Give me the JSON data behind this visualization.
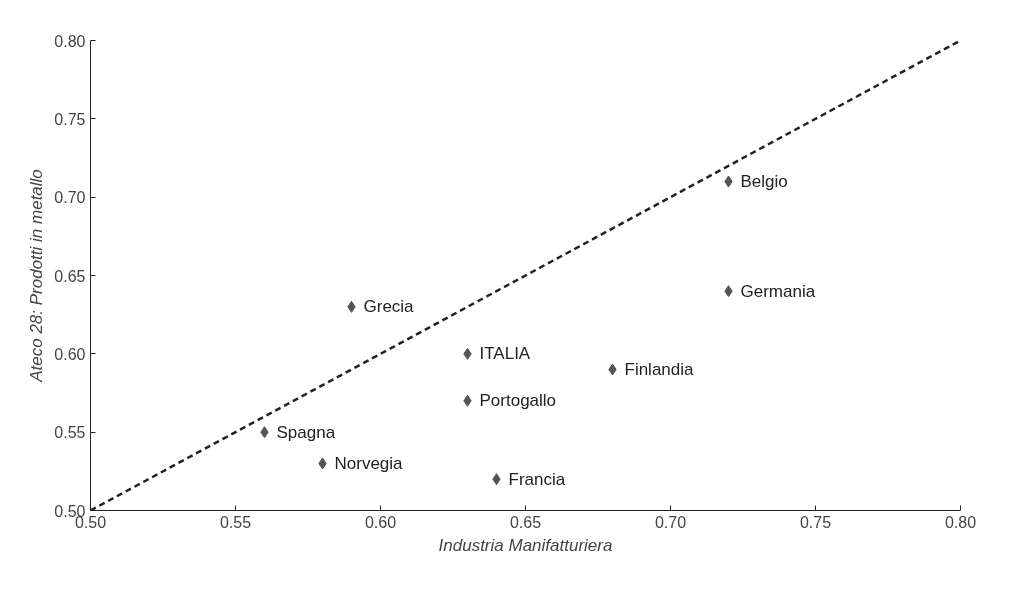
{
  "chart_data": {
    "type": "scatter",
    "xlabel": "Industria Manifatturiera",
    "ylabel": "Ateco 28: Prodotti in metallo",
    "xlim": [
      0.5,
      0.8
    ],
    "ylim": [
      0.5,
      0.8
    ],
    "xticks": [
      {
        "value": 0.5,
        "label": "0.50"
      },
      {
        "value": 0.55,
        "label": "0.55"
      },
      {
        "value": 0.6,
        "label": "0.60"
      },
      {
        "value": 0.65,
        "label": "0.65"
      },
      {
        "value": 0.7,
        "label": "0.70"
      },
      {
        "value": 0.75,
        "label": "0.75"
      },
      {
        "value": 0.8,
        "label": "0.80"
      }
    ],
    "yticks": [
      {
        "value": 0.5,
        "label": "0.50"
      },
      {
        "value": 0.55,
        "label": "0.55"
      },
      {
        "value": 0.6,
        "label": "0.60"
      },
      {
        "value": 0.65,
        "label": "0.65"
      },
      {
        "value": 0.7,
        "label": "0.70"
      },
      {
        "value": 0.75,
        "label": "0.75"
      },
      {
        "value": 0.8,
        "label": "0.80"
      }
    ],
    "grid": false,
    "series": [
      {
        "marker": "diamond",
        "color": "#555555",
        "x": [
          0.72,
          0.72,
          0.59,
          0.63,
          0.68,
          0.63,
          0.56,
          0.58,
          0.64
        ],
        "values": [
          0.71,
          0.64,
          0.63,
          0.6,
          0.59,
          0.57,
          0.55,
          0.53,
          0.52
        ]
      },
      {
        "type": "line",
        "marker": "none",
        "color": "#222222",
        "line_style": "dashed",
        "x": [
          0.5,
          0.8
        ],
        "values": [
          0.5,
          0.8
        ]
      }
    ],
    "annotations": [
      {
        "text": "Belgio",
        "x": 0.72,
        "y": 0.71
      },
      {
        "text": "Germania",
        "x": 0.72,
        "y": 0.64
      },
      {
        "text": "Grecia",
        "x": 0.59,
        "y": 0.63
      },
      {
        "text": "ITALIA",
        "x": 0.63,
        "y": 0.6
      },
      {
        "text": "Finlandia",
        "x": 0.68,
        "y": 0.59
      },
      {
        "text": "Portogallo",
        "x": 0.63,
        "y": 0.57
      },
      {
        "text": "Spagna",
        "x": 0.56,
        "y": 0.55
      },
      {
        "text": "Norvegia",
        "x": 0.58,
        "y": 0.53
      },
      {
        "text": "Francia",
        "x": 0.64,
        "y": 0.52
      }
    ]
  }
}
